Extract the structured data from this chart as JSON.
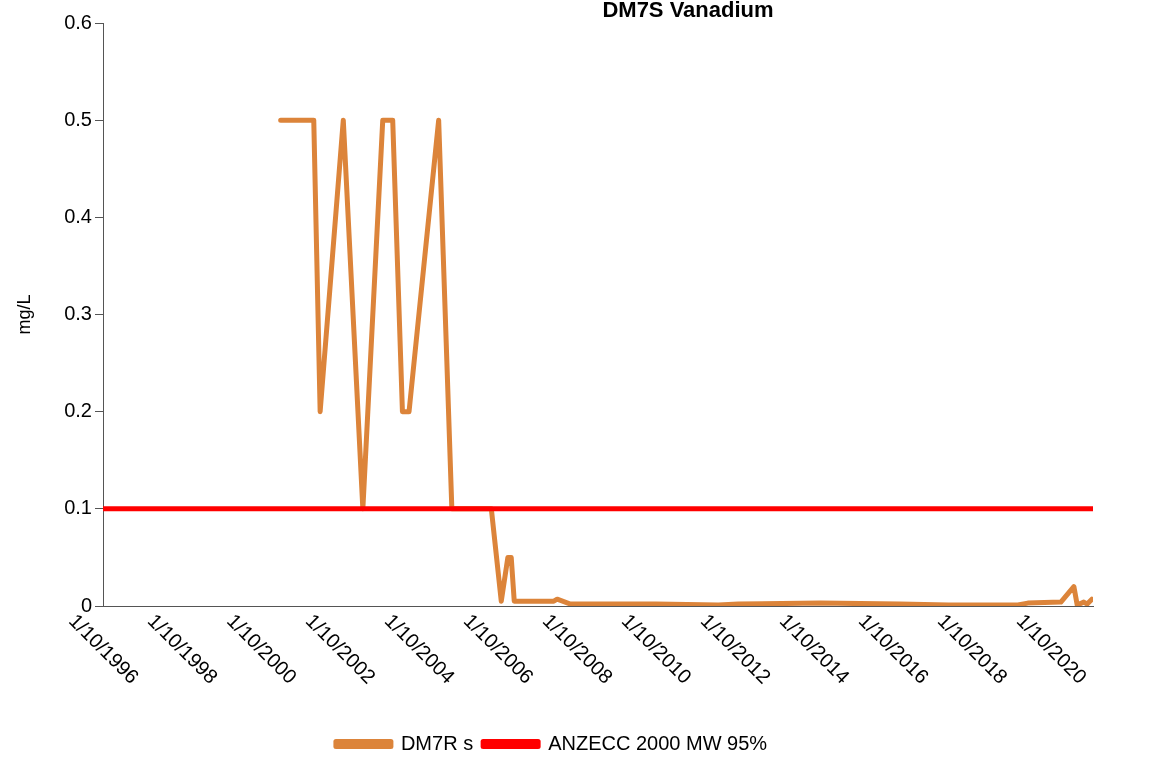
{
  "chart_data": {
    "type": "line",
    "title": "DM7S Vanadium",
    "ylabel": "mg/L",
    "xlim": [
      "1996-10-01",
      "2021-10-25"
    ],
    "xticks": [
      {
        "value": "1996-10-01",
        "label": "1/10/1996"
      },
      {
        "value": "1998-10-01",
        "label": "1/10/1998"
      },
      {
        "value": "2000-10-01",
        "label": "1/10/2000"
      },
      {
        "value": "2002-10-01",
        "label": "1/10/2002"
      },
      {
        "value": "2004-10-01",
        "label": "1/10/2004"
      },
      {
        "value": "2006-10-01",
        "label": "1/10/2006"
      },
      {
        "value": "2008-10-01",
        "label": "1/10/2008"
      },
      {
        "value": "2010-10-01",
        "label": "1/10/2010"
      },
      {
        "value": "2012-10-01",
        "label": "1/10/2012"
      },
      {
        "value": "2014-10-01",
        "label": "1/10/2014"
      },
      {
        "value": "2016-10-01",
        "label": "1/10/2016"
      },
      {
        "value": "2018-10-01",
        "label": "1/10/2018"
      },
      {
        "value": "2020-10-01",
        "label": "1/10/2020"
      }
    ],
    "ylim": [
      0,
      0.6
    ],
    "yticks": [
      0,
      0.1,
      0.2,
      0.3,
      0.4,
      0.5,
      0.6
    ],
    "grid": false,
    "legend": "bottom",
    "marker": "none",
    "line_style": "solid",
    "series": [
      {
        "name": "DM7R s",
        "color": "#dc843a",
        "x": [
          "2001-04",
          "2002-02",
          "2002-04",
          "2002-11",
          "2003-05",
          "2003-11",
          "2004-02",
          "2004-05",
          "2004-07",
          "2005-04",
          "2005-08",
          "2006-08",
          "2006-11",
          "2007-01",
          "2007-02",
          "2007-03",
          "2008-03",
          "2008-04",
          "2008-08",
          "2010-10",
          "2012-05",
          "2012-11",
          "2014-12",
          "2016-12",
          "2018-03",
          "2019-12",
          "2020-03",
          "2021-01",
          "2021-05",
          "2021-06",
          "2021-08",
          "2021-09",
          "2021-10-15"
        ],
        "values": [
          0.5,
          0.5,
          0.2,
          0.5,
          0.1,
          0.5,
          0.5,
          0.2,
          0.2,
          0.5,
          0.1,
          0.1,
          0.005,
          0.05,
          0.05,
          0.005,
          0.005,
          0.007,
          0.002,
          0.002,
          0.001,
          0.002,
          0.003,
          0.002,
          0.001,
          0.001,
          0.003,
          0.004,
          0.02,
          0.001,
          0.004,
          0.002,
          0.007
        ]
      },
      {
        "name": "ANZECC 2000 MW 95%",
        "color": "#ff0000",
        "x": [
          "1996-10-01",
          "2021-10-25"
        ],
        "values": [
          0.1,
          0.1
        ]
      }
    ]
  }
}
